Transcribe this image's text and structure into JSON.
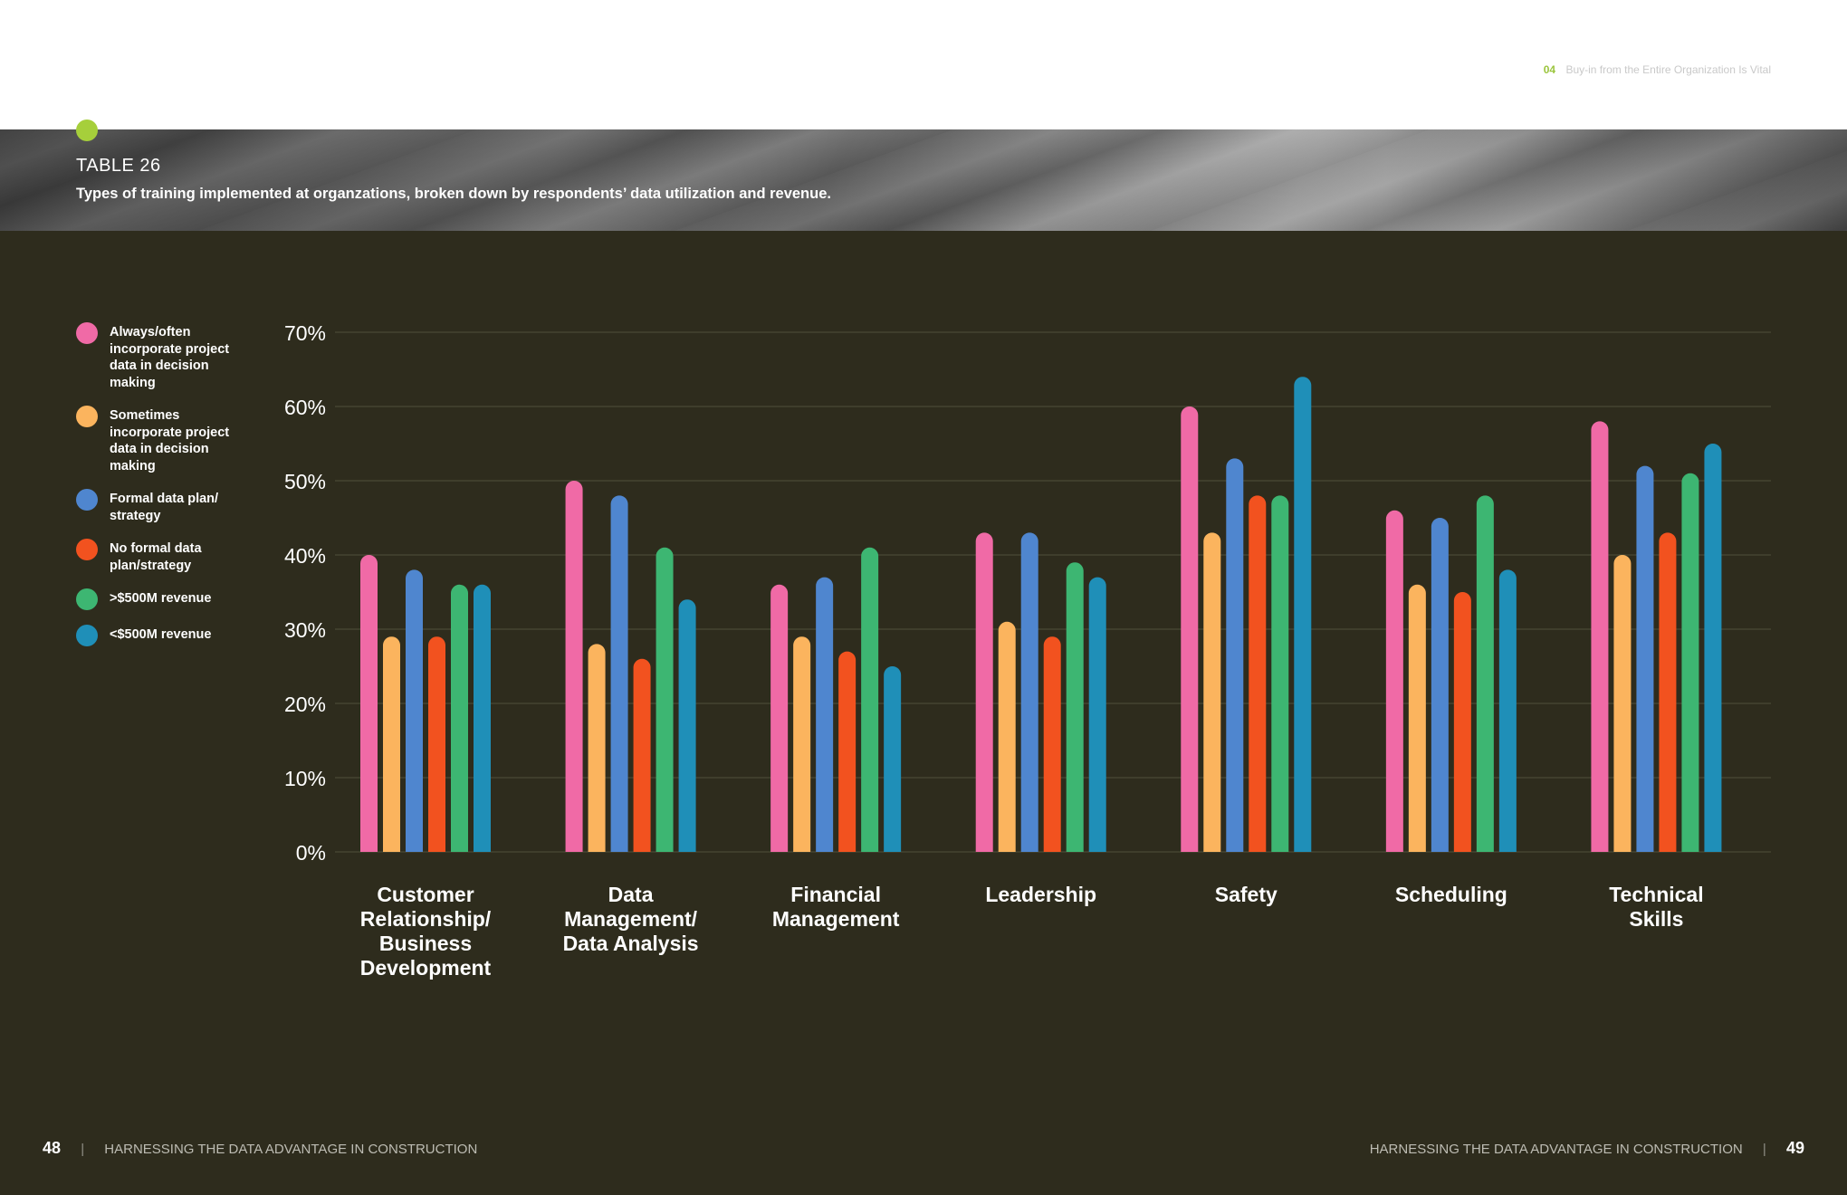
{
  "header": {
    "section_number": "04",
    "section_title": "Buy-in from the Entire Organization Is Vital"
  },
  "table": {
    "label": "TABLE 26",
    "caption": "Types of training implemented at organzations, broken down by respondents’ data utilization and revenue."
  },
  "footer": {
    "left_page": "48",
    "left_title": "HARNESSING THE DATA ADVANTAGE IN CONSTRUCTION",
    "right_title": "HARNESSING THE DATA ADVANTAGE IN CONSTRUCTION",
    "right_page": "49",
    "separator": "|"
  },
  "colors": {
    "background": "#2e2c1d",
    "accent": "#a6cf3b",
    "gridline": "#4a4836"
  },
  "chart_data": {
    "type": "bar",
    "categories": [
      [
        "Customer",
        "Relationship/",
        "Business",
        "Development"
      ],
      [
        "Data",
        "Management/",
        "Data Analysis"
      ],
      [
        "Financial",
        "Management"
      ],
      [
        "Leadership"
      ],
      [
        "Safety"
      ],
      [
        "Scheduling"
      ],
      [
        "Technical",
        "Skills"
      ]
    ],
    "series": [
      {
        "name": "Always/often incorporate project data in decision making",
        "color": "#f06aa6",
        "values": [
          40,
          50,
          36,
          43,
          60,
          46,
          58
        ]
      },
      {
        "name": "Sometimes incorporate project data in decision making",
        "color": "#fbb45e",
        "values": [
          29,
          28,
          29,
          31,
          43,
          36,
          40
        ]
      },
      {
        "name": "Formal data plan/ strategy",
        "color": "#4f86cf",
        "values": [
          38,
          48,
          37,
          43,
          53,
          45,
          52
        ]
      },
      {
        "name": "No formal data plan/strategy",
        "color": "#f2521f",
        "values": [
          29,
          26,
          27,
          29,
          48,
          35,
          43
        ]
      },
      {
        "name": ">$500M revenue",
        "color": "#3db672",
        "values": [
          36,
          41,
          41,
          39,
          48,
          48,
          51
        ]
      },
      {
        "name": "<$500M revenue",
        "color": "#1f8fb8",
        "values": [
          36,
          34,
          25,
          37,
          64,
          38,
          55
        ]
      }
    ],
    "y_ticks": [
      "0%",
      "10%",
      "20%",
      "30%",
      "40%",
      "50%",
      "60%",
      "70%"
    ],
    "ylim": [
      0,
      70
    ],
    "grid": true,
    "legend_position": "left"
  }
}
